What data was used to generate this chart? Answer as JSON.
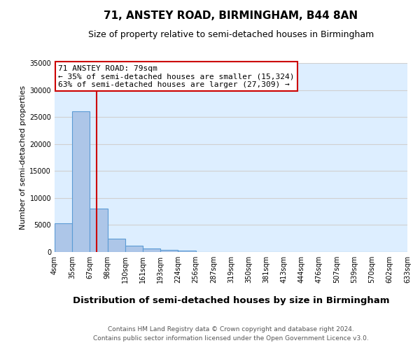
{
  "title": "71, ANSTEY ROAD, BIRMINGHAM, B44 8AN",
  "subtitle": "Size of property relative to semi-detached houses in Birmingham",
  "xlabel": "Distribution of semi-detached houses by size in Birmingham",
  "ylabel": "Number of semi-detached properties",
  "bin_labels": [
    "4sqm",
    "35sqm",
    "67sqm",
    "98sqm",
    "130sqm",
    "161sqm",
    "193sqm",
    "224sqm",
    "256sqm",
    "287sqm",
    "319sqm",
    "350sqm",
    "381sqm",
    "413sqm",
    "444sqm",
    "476sqm",
    "507sqm",
    "539sqm",
    "570sqm",
    "602sqm",
    "633sqm"
  ],
  "bar_values": [
    5300,
    26000,
    8000,
    2500,
    1200,
    600,
    350,
    300,
    0,
    0,
    0,
    0,
    0,
    0,
    0,
    0,
    0,
    0,
    0,
    0
  ],
  "bar_color": "#adc6e8",
  "bar_edge_color": "#5b9bd5",
  "grid_color": "#d0d0d0",
  "bg_color": "#ddeeff",
  "property_sqm": 79,
  "annotation_title": "71 ANSTEY ROAD: 79sqm",
  "annotation_line1": "← 35% of semi-detached houses are smaller (15,324)",
  "annotation_line2": "63% of semi-detached houses are larger (27,309) →",
  "annotation_box_color": "#ffffff",
  "annotation_border_color": "#cc0000",
  "red_line_color": "#cc0000",
  "ylim": [
    0,
    35000
  ],
  "yticks": [
    0,
    5000,
    10000,
    15000,
    20000,
    25000,
    30000,
    35000
  ],
  "footnote1": "Contains HM Land Registry data © Crown copyright and database right 2024.",
  "footnote2": "Contains public sector information licensed under the Open Government Licence v3.0.",
  "title_fontsize": 11,
  "subtitle_fontsize": 9,
  "xlabel_fontsize": 9.5,
  "ylabel_fontsize": 8,
  "tick_fontsize": 7,
  "annotation_fontsize": 8,
  "footnote_fontsize": 6.5
}
